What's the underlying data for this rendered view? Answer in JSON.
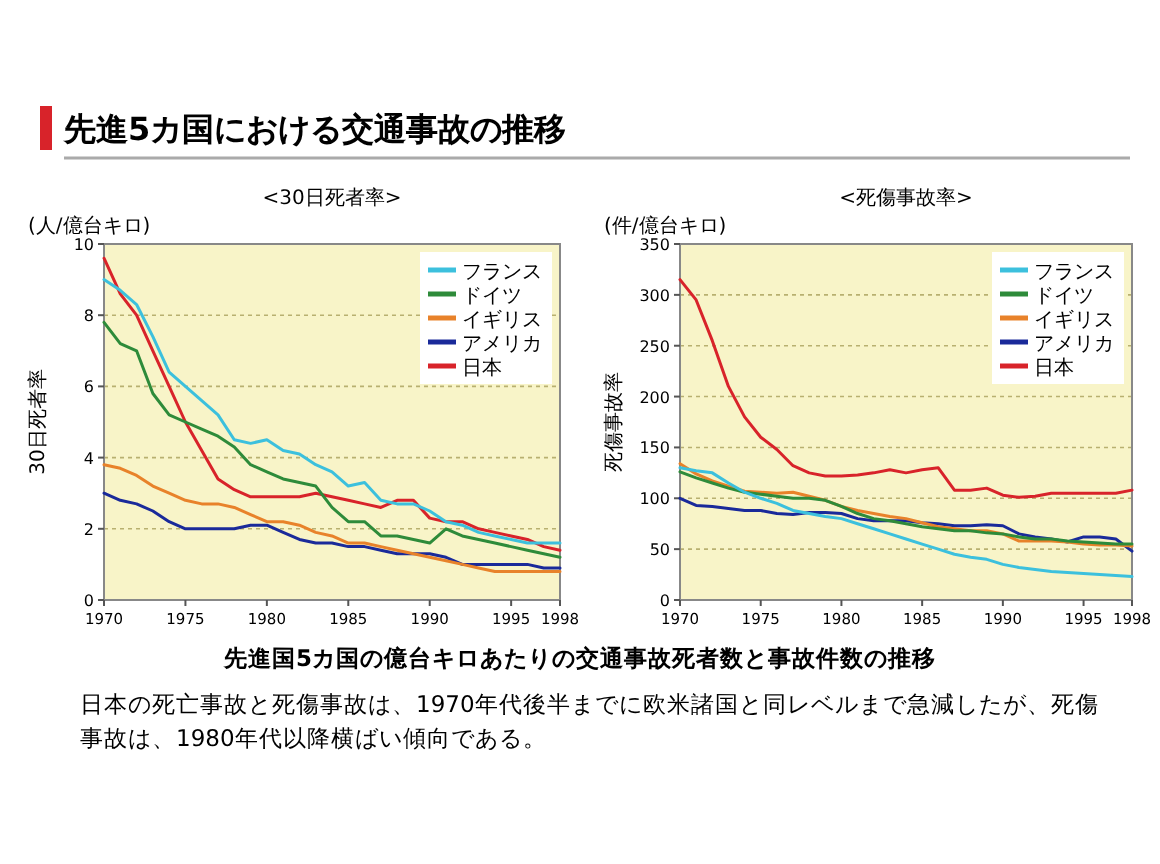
{
  "chart_data": [
    {
      "type": "line",
      "title": "<30日死者率>",
      "ylabel": "30日死者率",
      "annotations": [
        "(人/億台キロ)",
        "先進5カ国における交通事故の推移",
        "先進国5カ国の億台キロあたりの交通事故死者数と事故件数の推移",
        "日本の死亡事故と死傷事故は、1970年代後半までに欧米諸国と同レベルまで急減したが、死傷事故は、1980年代以降横ばい傾向である。"
      ],
      "x": [
        1970,
        1971,
        1972,
        1973,
        1974,
        1975,
        1976,
        1977,
        1978,
        1979,
        1980,
        1981,
        1982,
        1983,
        1984,
        1985,
        1986,
        1987,
        1988,
        1989,
        1990,
        1991,
        1992,
        1993,
        1994,
        1995,
        1996,
        1997,
        1998
      ],
      "xlim": [
        1970,
        1998
      ],
      "xticks": [
        1970,
        1975,
        1980,
        1985,
        1990,
        1995,
        1998
      ],
      "ylim": [
        0,
        10
      ],
      "yticks": [
        0,
        2,
        4,
        6,
        8,
        10
      ],
      "grid": "y",
      "legend": "top right",
      "line_style": "solid",
      "marker": "none",
      "series": [
        {
          "name": "フランス",
          "color": "#3cc0dd",
          "values": [
            9.0,
            8.7,
            8.3,
            7.4,
            6.4,
            6.0,
            5.6,
            5.2,
            4.5,
            4.4,
            4.5,
            4.2,
            4.1,
            3.8,
            3.6,
            3.2,
            3.3,
            2.8,
            2.7,
            2.7,
            2.5,
            2.2,
            2.1,
            1.9,
            1.8,
            1.7,
            1.6,
            1.6,
            1.6
          ]
        },
        {
          "name": "ドイツ",
          "color": "#2e8b3a",
          "values": [
            7.8,
            7.2,
            7.0,
            5.8,
            5.2,
            5.0,
            4.8,
            4.6,
            4.3,
            3.8,
            3.6,
            3.4,
            3.3,
            3.2,
            2.6,
            2.2,
            2.2,
            1.8,
            1.8,
            1.7,
            1.6,
            2.0,
            1.8,
            1.7,
            1.6,
            1.5,
            1.4,
            1.3,
            1.2
          ]
        },
        {
          "name": "イギリス",
          "color": "#e8822a",
          "values": [
            3.8,
            3.7,
            3.5,
            3.2,
            3.0,
            2.8,
            2.7,
            2.7,
            2.6,
            2.4,
            2.2,
            2.2,
            2.1,
            1.9,
            1.8,
            1.6,
            1.6,
            1.5,
            1.4,
            1.3,
            1.2,
            1.1,
            1.0,
            0.9,
            0.8,
            0.8,
            0.8,
            0.8,
            0.8
          ]
        },
        {
          "name": "アメリカ",
          "color": "#1a2a9a",
          "values": [
            3.0,
            2.8,
            2.7,
            2.5,
            2.2,
            2.0,
            2.0,
            2.0,
            2.0,
            2.1,
            2.1,
            1.9,
            1.7,
            1.6,
            1.6,
            1.5,
            1.5,
            1.4,
            1.3,
            1.3,
            1.3,
            1.2,
            1.0,
            1.0,
            1.0,
            1.0,
            1.0,
            0.9,
            0.9
          ]
        },
        {
          "name": "日本",
          "color": "#d8232a",
          "values": [
            9.6,
            8.6,
            8.0,
            7.0,
            6.0,
            5.0,
            4.2,
            3.4,
            3.1,
            2.9,
            2.9,
            2.9,
            2.9,
            3.0,
            2.9,
            2.8,
            2.7,
            2.6,
            2.8,
            2.8,
            2.3,
            2.2,
            2.2,
            2.0,
            1.9,
            1.8,
            1.7,
            1.5,
            1.4
          ]
        }
      ]
    },
    {
      "type": "line",
      "title": "<死傷事故率>",
      "ylabel": "死傷事故率",
      "annotations": [
        "(件/億台キロ)"
      ],
      "x": [
        1970,
        1971,
        1972,
        1973,
        1974,
        1975,
        1976,
        1977,
        1978,
        1979,
        1980,
        1981,
        1982,
        1983,
        1984,
        1985,
        1986,
        1987,
        1988,
        1989,
        1990,
        1991,
        1992,
        1993,
        1994,
        1995,
        1996,
        1997,
        1998
      ],
      "xlim": [
        1970,
        1998
      ],
      "xticks": [
        1970,
        1975,
        1980,
        1985,
        1990,
        1995,
        1998
      ],
      "ylim": [
        0,
        350
      ],
      "yticks": [
        0,
        50,
        100,
        150,
        200,
        250,
        300,
        350
      ],
      "grid": "y",
      "legend": "top right",
      "line_style": "solid",
      "marker": "none",
      "series": [
        {
          "name": "フランス",
          "color": "#3cc0dd",
          "values": [
            130,
            127,
            125,
            115,
            106,
            100,
            95,
            88,
            85,
            82,
            80,
            75,
            70,
            65,
            60,
            55,
            50,
            45,
            42,
            40,
            35,
            32,
            30,
            28,
            27,
            26,
            25,
            24,
            23
          ]
        },
        {
          "name": "ドイツ",
          "color": "#2e8b3a",
          "values": [
            126,
            120,
            115,
            110,
            106,
            104,
            102,
            100,
            100,
            98,
            92,
            85,
            80,
            78,
            75,
            72,
            70,
            68,
            68,
            66,
            65,
            62,
            60,
            60,
            58,
            57,
            56,
            55,
            55
          ]
        },
        {
          "name": "イギリス",
          "color": "#e8822a",
          "values": [
            134,
            124,
            117,
            112,
            107,
            106,
            105,
            106,
            102,
            98,
            92,
            88,
            85,
            82,
            80,
            76,
            72,
            70,
            68,
            68,
            65,
            58,
            58,
            58,
            57,
            55,
            54,
            54,
            53
          ]
        },
        {
          "name": "アメリカ",
          "color": "#1a2a9a",
          "values": [
            100,
            93,
            92,
            90,
            88,
            88,
            85,
            84,
            86,
            86,
            85,
            80,
            78,
            78,
            78,
            76,
            75,
            73,
            73,
            74,
            73,
            65,
            62,
            60,
            57,
            62,
            62,
            60,
            48
          ]
        },
        {
          "name": "日本",
          "color": "#d8232a",
          "values": [
            315,
            295,
            255,
            210,
            180,
            160,
            148,
            132,
            125,
            122,
            122,
            123,
            125,
            128,
            125,
            128,
            130,
            108,
            108,
            110,
            103,
            101,
            102,
            105,
            105,
            105,
            105,
            105,
            108
          ]
        }
      ]
    }
  ]
}
